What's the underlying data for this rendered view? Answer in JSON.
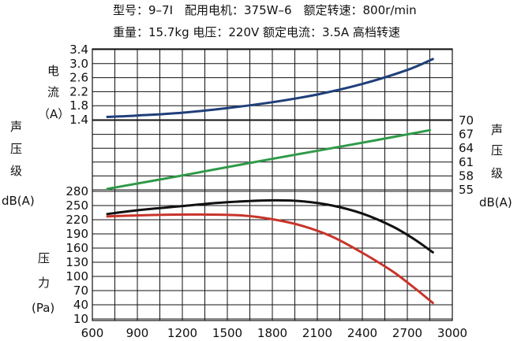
{
  "spec_lines": [
    "型号：9–7Ⅰ　配用电机：375W–6　额定转速：800r/min",
    "重量：15.7kg  电压：220V  额定电流：3.5A  高档转速"
  ],
  "axis_labels": {
    "current": [
      "电",
      "流",
      "（A）"
    ],
    "pressure": [
      "压",
      "力",
      "(Pa)"
    ],
    "sound_left": [
      "声",
      "压",
      "级",
      "dB(A)"
    ],
    "sound_right": [
      "声",
      "压",
      "级",
      "dB(A)"
    ]
  },
  "colors": {
    "current": "#1f3f7a",
    "sound": "#2f9a48",
    "pressure_black": "#111111",
    "pressure_red": "#c8342a",
    "grid": "#111111"
  },
  "chart_data": {
    "type": "line",
    "title": "",
    "x": {
      "ticks": [
        "600",
        "900",
        "1200",
        "1500",
        "1800",
        "2100",
        "2400",
        "2700",
        "3000"
      ],
      "range": [
        600,
        3000
      ],
      "grid_values": [
        600,
        750,
        900,
        1050,
        1200,
        1350,
        1500,
        1650,
        1800,
        1950,
        2100,
        2250,
        2400,
        2550,
        2700,
        2850,
        3000
      ]
    },
    "y_current": {
      "unit": "A",
      "ticks": [
        "3.4",
        "3.0",
        "2.6",
        "2.2",
        "1.8",
        "1.4"
      ],
      "values": [
        3.4,
        3.0,
        2.6,
        2.2,
        1.8,
        1.4
      ],
      "range": [
        1.4,
        3.4
      ]
    },
    "y_sound": {
      "unit": "dB(A)",
      "ticks": [
        "70",
        "67",
        "64",
        "61",
        "58",
        "55"
      ],
      "values": [
        70,
        67,
        64,
        61,
        58,
        55
      ],
      "range": [
        55,
        70
      ]
    },
    "y_pressure": {
      "unit": "Pa",
      "ticks": [
        "280",
        "250",
        "220",
        "190",
        "160",
        "130",
        "100",
        "70",
        "40",
        "10"
      ],
      "values": [
        280,
        250,
        220,
        190,
        160,
        130,
        100,
        70,
        40,
        10
      ],
      "range": [
        10,
        280
      ]
    },
    "grid": true,
    "series": [
      {
        "key": "current",
        "axis": "current",
        "points": [
          [
            700,
            1.48
          ],
          [
            900,
            1.52
          ],
          [
            1200,
            1.6
          ],
          [
            1500,
            1.73
          ],
          [
            1800,
            1.9
          ],
          [
            2100,
            2.12
          ],
          [
            2400,
            2.42
          ],
          [
            2700,
            2.82
          ],
          [
            2870,
            3.13
          ]
        ]
      },
      {
        "key": "sound",
        "axis": "sound",
        "points": [
          [
            700,
            55.2
          ],
          [
            1200,
            58.1
          ],
          [
            1800,
            61.7
          ],
          [
            2400,
            65.2
          ],
          [
            2850,
            67.9
          ]
        ]
      },
      {
        "key": "pressure_black",
        "axis": "pressure",
        "points": [
          [
            700,
            232
          ],
          [
            900,
            240
          ],
          [
            1200,
            249
          ],
          [
            1500,
            257
          ],
          [
            1800,
            261
          ],
          [
            2000,
            259
          ],
          [
            2200,
            250
          ],
          [
            2400,
            233
          ],
          [
            2600,
            206
          ],
          [
            2750,
            178
          ],
          [
            2870,
            151
          ]
        ]
      },
      {
        "key": "pressure_red",
        "axis": "pressure",
        "points": [
          [
            700,
            227
          ],
          [
            1000,
            230
          ],
          [
            1300,
            231
          ],
          [
            1600,
            229
          ],
          [
            1800,
            221
          ],
          [
            2000,
            207
          ],
          [
            2200,
            184
          ],
          [
            2400,
            150
          ],
          [
            2600,
            111
          ],
          [
            2750,
            75
          ],
          [
            2870,
            44
          ]
        ]
      }
    ]
  }
}
